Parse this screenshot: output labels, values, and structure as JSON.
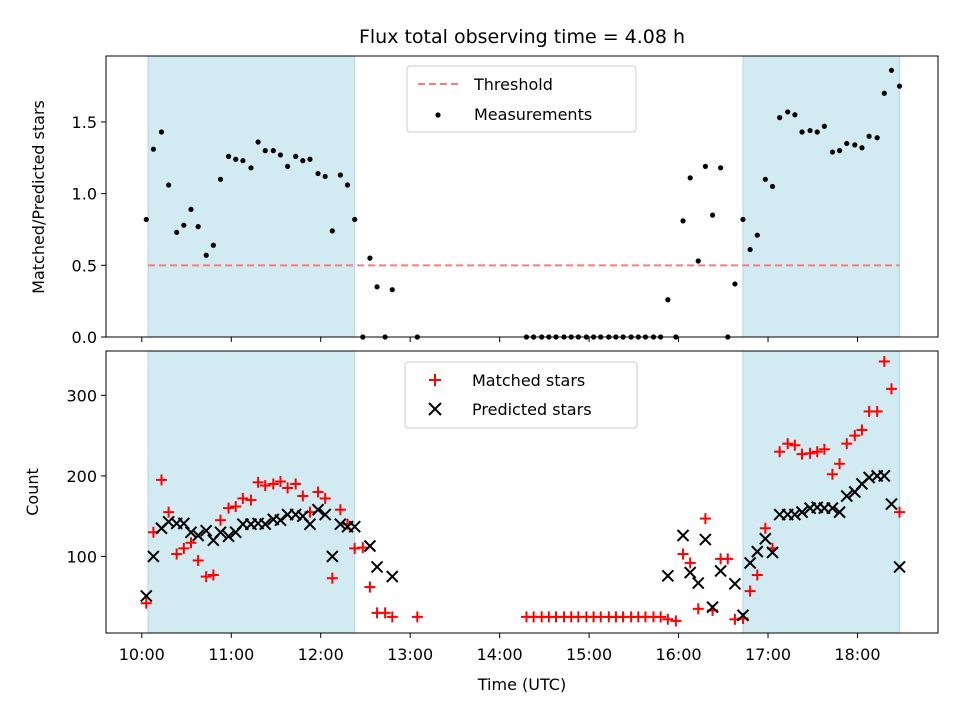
{
  "chart_data": {
    "type": "scatter",
    "title": "Flux total observing time = 4.08 h",
    "xlabel": "Time (UTC)",
    "x_ticks": [
      "10:00",
      "11:00",
      "12:00",
      "13:00",
      "14:00",
      "15:00",
      "16:00",
      "17:00",
      "18:00"
    ],
    "x_range_hours": [
      9.6,
      18.9
    ],
    "shaded_intervals_hours": [
      [
        10.07,
        12.38
      ],
      [
        16.72,
        18.47
      ]
    ],
    "shade_color": "#add8e6",
    "panels": [
      {
        "ylabel": "Matched/Predicted stars",
        "ylim": [
          0,
          1.96
        ],
        "yticks": [
          0.0,
          0.5,
          1.0,
          1.5
        ],
        "ytick_labels": [
          "0.0",
          "0.5",
          "1.0",
          "1.5"
        ],
        "threshold": {
          "value": 0.5,
          "label": "Threshold",
          "color": "#f08080"
        },
        "series": [
          {
            "name": "Measurements",
            "marker": "dot",
            "color": "#000000",
            "points": [
              [
                10.05,
                0.82
              ],
              [
                10.13,
                1.31
              ],
              [
                10.22,
                1.43
              ],
              [
                10.3,
                1.06
              ],
              [
                10.39,
                0.73
              ],
              [
                10.47,
                0.78
              ],
              [
                10.55,
                0.89
              ],
              [
                10.63,
                0.77
              ],
              [
                10.72,
                0.57
              ],
              [
                10.8,
                0.64
              ],
              [
                10.88,
                1.1
              ],
              [
                10.97,
                1.26
              ],
              [
                11.05,
                1.24
              ],
              [
                11.13,
                1.23
              ],
              [
                11.22,
                1.18
              ],
              [
                11.3,
                1.36
              ],
              [
                11.38,
                1.3
              ],
              [
                11.47,
                1.3
              ],
              [
                11.55,
                1.27
              ],
              [
                11.63,
                1.19
              ],
              [
                11.72,
                1.26
              ],
              [
                11.8,
                1.23
              ],
              [
                11.88,
                1.24
              ],
              [
                11.97,
                1.14
              ],
              [
                12.05,
                1.12
              ],
              [
                12.13,
                0.74
              ],
              [
                12.22,
                1.13
              ],
              [
                12.3,
                1.06
              ],
              [
                12.38,
                0.82
              ],
              [
                12.47,
                0.0
              ],
              [
                12.55,
                0.55
              ],
              [
                12.63,
                0.35
              ],
              [
                12.72,
                0.0
              ],
              [
                12.8,
                0.33
              ],
              [
                13.08,
                0.0
              ],
              [
                14.3,
                0.0
              ],
              [
                14.38,
                0.0
              ],
              [
                14.47,
                0.0
              ],
              [
                14.55,
                0.0
              ],
              [
                14.63,
                0.0
              ],
              [
                14.72,
                0.0
              ],
              [
                14.8,
                0.0
              ],
              [
                14.88,
                0.0
              ],
              [
                14.97,
                0.0
              ],
              [
                15.05,
                0.0
              ],
              [
                15.13,
                0.0
              ],
              [
                15.22,
                0.0
              ],
              [
                15.3,
                0.0
              ],
              [
                15.38,
                0.0
              ],
              [
                15.47,
                0.0
              ],
              [
                15.55,
                0.0
              ],
              [
                15.63,
                0.0
              ],
              [
                15.72,
                0.0
              ],
              [
                15.8,
                0.0
              ],
              [
                15.88,
                0.26
              ],
              [
                15.97,
                0.0
              ],
              [
                16.05,
                0.81
              ],
              [
                16.13,
                1.11
              ],
              [
                16.22,
                0.53
              ],
              [
                16.3,
                1.19
              ],
              [
                16.38,
                0.85
              ],
              [
                16.47,
                1.18
              ],
              [
                16.55,
                0.0
              ],
              [
                16.63,
                0.37
              ],
              [
                16.72,
                0.82
              ],
              [
                16.8,
                0.61
              ],
              [
                16.88,
                0.71
              ],
              [
                16.97,
                1.1
              ],
              [
                17.05,
                1.05
              ],
              [
                17.13,
                1.53
              ],
              [
                17.22,
                1.57
              ],
              [
                17.3,
                1.55
              ],
              [
                17.38,
                1.43
              ],
              [
                17.47,
                1.44
              ],
              [
                17.55,
                1.43
              ],
              [
                17.63,
                1.47
              ],
              [
                17.72,
                1.29
              ],
              [
                17.8,
                1.3
              ],
              [
                17.88,
                1.35
              ],
              [
                17.97,
                1.34
              ],
              [
                18.05,
                1.32
              ],
              [
                18.13,
                1.4
              ],
              [
                18.22,
                1.39
              ],
              [
                18.3,
                1.7
              ],
              [
                18.38,
                1.86
              ],
              [
                18.47,
                1.75
              ]
            ]
          }
        ],
        "legend": [
          "Threshold",
          "Measurements"
        ],
        "legend_position": "top-center"
      },
      {
        "ylabel": "Count",
        "ylim": [
          5,
          355
        ],
        "yticks": [
          100,
          200,
          300
        ],
        "ytick_labels": [
          "100",
          "200",
          "300"
        ],
        "series": [
          {
            "name": "Matched stars",
            "marker": "plus",
            "color": "#ff0000",
            "points": [
              [
                10.05,
                42
              ],
              [
                10.13,
                130
              ],
              [
                10.22,
                195
              ],
              [
                10.3,
                155
              ],
              [
                10.39,
                103
              ],
              [
                10.47,
                110
              ],
              [
                10.55,
                117
              ],
              [
                10.63,
                95
              ],
              [
                10.72,
                75
              ],
              [
                10.8,
                77
              ],
              [
                10.88,
                145
              ],
              [
                10.97,
                160
              ],
              [
                11.05,
                162
              ],
              [
                11.13,
                172
              ],
              [
                11.22,
                170
              ],
              [
                11.3,
                192
              ],
              [
                11.38,
                188
              ],
              [
                11.47,
                190
              ],
              [
                11.55,
                193
              ],
              [
                11.63,
                185
              ],
              [
                11.72,
                190
              ],
              [
                11.8,
                175
              ],
              [
                11.88,
                155
              ],
              [
                11.97,
                180
              ],
              [
                12.05,
                172
              ],
              [
                12.13,
                73
              ],
              [
                12.22,
                158
              ],
              [
                12.3,
                140
              ],
              [
                12.38,
                110
              ],
              [
                12.47,
                111
              ],
              [
                12.55,
                62
              ],
              [
                12.63,
                30
              ],
              [
                12.72,
                30
              ],
              [
                12.8,
                25
              ],
              [
                13.08,
                25
              ],
              [
                14.3,
                25
              ],
              [
                14.38,
                25
              ],
              [
                14.47,
                25
              ],
              [
                14.55,
                25
              ],
              [
                14.63,
                25
              ],
              [
                14.72,
                25
              ],
              [
                14.8,
                25
              ],
              [
                14.88,
                25
              ],
              [
                14.97,
                25
              ],
              [
                15.05,
                25
              ],
              [
                15.13,
                25
              ],
              [
                15.22,
                25
              ],
              [
                15.3,
                25
              ],
              [
                15.38,
                25
              ],
              [
                15.47,
                25
              ],
              [
                15.55,
                25
              ],
              [
                15.63,
                25
              ],
              [
                15.72,
                25
              ],
              [
                15.8,
                25
              ],
              [
                15.88,
                22
              ],
              [
                15.97,
                20
              ],
              [
                16.05,
                103
              ],
              [
                16.13,
                92
              ],
              [
                16.22,
                35
              ],
              [
                16.3,
                147
              ],
              [
                16.38,
                33
              ],
              [
                16.47,
                97
              ],
              [
                16.55,
                97
              ],
              [
                16.63,
                22
              ],
              [
                16.72,
                23
              ],
              [
                16.8,
                57
              ],
              [
                16.88,
                77
              ],
              [
                16.97,
                135
              ],
              [
                17.05,
                110
              ],
              [
                17.13,
                230
              ],
              [
                17.22,
                240
              ],
              [
                17.3,
                238
              ],
              [
                17.38,
                227
              ],
              [
                17.47,
                228
              ],
              [
                17.55,
                230
              ],
              [
                17.63,
                233
              ],
              [
                17.72,
                202
              ],
              [
                17.8,
                215
              ],
              [
                17.88,
                240
              ],
              [
                17.97,
                250
              ],
              [
                18.05,
                257
              ],
              [
                18.13,
                280
              ],
              [
                18.22,
                280
              ],
              [
                18.3,
                342
              ],
              [
                18.38,
                308
              ],
              [
                18.47,
                155
              ]
            ]
          },
          {
            "name": "Predicted stars",
            "marker": "x",
            "color": "#000000",
            "points": [
              [
                10.05,
                51
              ],
              [
                10.13,
                100
              ],
              [
                10.22,
                135
              ],
              [
                10.3,
                143
              ],
              [
                10.39,
                141
              ],
              [
                10.47,
                141
              ],
              [
                10.55,
                130
              ],
              [
                10.63,
                126
              ],
              [
                10.72,
                132
              ],
              [
                10.8,
                120
              ],
              [
                10.88,
                130
              ],
              [
                10.97,
                125
              ],
              [
                11.05,
                130
              ],
              [
                11.13,
                140
              ],
              [
                11.22,
                140
              ],
              [
                11.3,
                141
              ],
              [
                11.38,
                140
              ],
              [
                11.47,
                146
              ],
              [
                11.55,
                145
              ],
              [
                11.63,
                152
              ],
              [
                11.72,
                152
              ],
              [
                11.8,
                150
              ],
              [
                11.88,
                140
              ],
              [
                11.97,
                158
              ],
              [
                12.05,
                152
              ],
              [
                12.13,
                100
              ],
              [
                12.22,
                140
              ],
              [
                12.3,
                137
              ],
              [
                12.38,
                137
              ],
              [
                12.55,
                113
              ],
              [
                12.63,
                87
              ],
              [
                12.8,
                75
              ],
              [
                15.88,
                76
              ],
              [
                16.05,
                126
              ],
              [
                16.13,
                80
              ],
              [
                16.22,
                67
              ],
              [
                16.3,
                121
              ],
              [
                16.38,
                37
              ],
              [
                16.47,
                82
              ],
              [
                16.63,
                66
              ],
              [
                16.72,
                27
              ],
              [
                16.8,
                92
              ],
              [
                16.88,
                106
              ],
              [
                16.97,
                122
              ],
              [
                17.05,
                105
              ],
              [
                17.13,
                152
              ],
              [
                17.22,
                152
              ],
              [
                17.3,
                152
              ],
              [
                17.38,
                155
              ],
              [
                17.47,
                160
              ],
              [
                17.55,
                161
              ],
              [
                17.63,
                160
              ],
              [
                17.72,
                160
              ],
              [
                17.8,
                155
              ],
              [
                17.88,
                175
              ],
              [
                17.97,
                180
              ],
              [
                18.05,
                190
              ],
              [
                18.13,
                198
              ],
              [
                18.22,
                200
              ],
              [
                18.3,
                200
              ],
              [
                18.38,
                165
              ],
              [
                18.47,
                87
              ]
            ]
          }
        ],
        "legend": [
          "Matched stars",
          "Predicted stars"
        ],
        "legend_position": "top-center"
      }
    ]
  }
}
